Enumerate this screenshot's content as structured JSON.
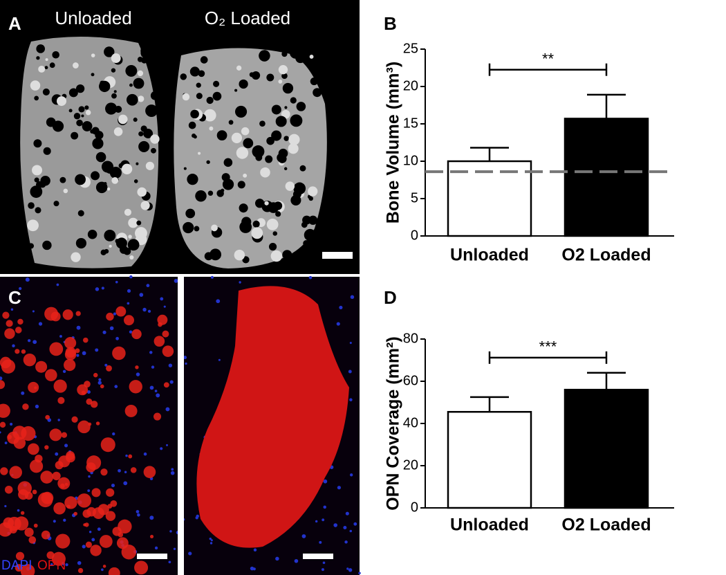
{
  "panel_labels": [
    "A",
    "B",
    "C",
    "D"
  ],
  "image_labels": {
    "unloaded": "Unloaded",
    "o2_loaded": "O₂ Loaded"
  },
  "stain_labels": {
    "dapi": "DAPI",
    "opn": "OPN"
  },
  "chart_data": [
    {
      "type": "bar",
      "ylabel": "Bone Volume (mm³)",
      "categories": [
        "Unloaded",
        "O2 Loaded"
      ],
      "values": [
        10,
        15.7
      ],
      "errors": [
        1.8,
        3.2
      ],
      "colors": [
        "#ffffff",
        "#000000"
      ],
      "reference_line": 8.6,
      "annotation": "**",
      "ylim": [
        0,
        25
      ],
      "yticks": [
        0,
        5,
        10,
        15,
        20,
        25
      ]
    },
    {
      "type": "bar",
      "ylabel": "OPN Coverage (mm²)",
      "categories": [
        "Unloaded",
        "O2 Loaded"
      ],
      "values": [
        45.5,
        56
      ],
      "errors": [
        7,
        8
      ],
      "colors": [
        "#ffffff",
        "#000000"
      ],
      "annotation": "***",
      "ylim": [
        0,
        80
      ],
      "yticks": [
        0,
        20,
        40,
        60,
        80
      ]
    }
  ]
}
